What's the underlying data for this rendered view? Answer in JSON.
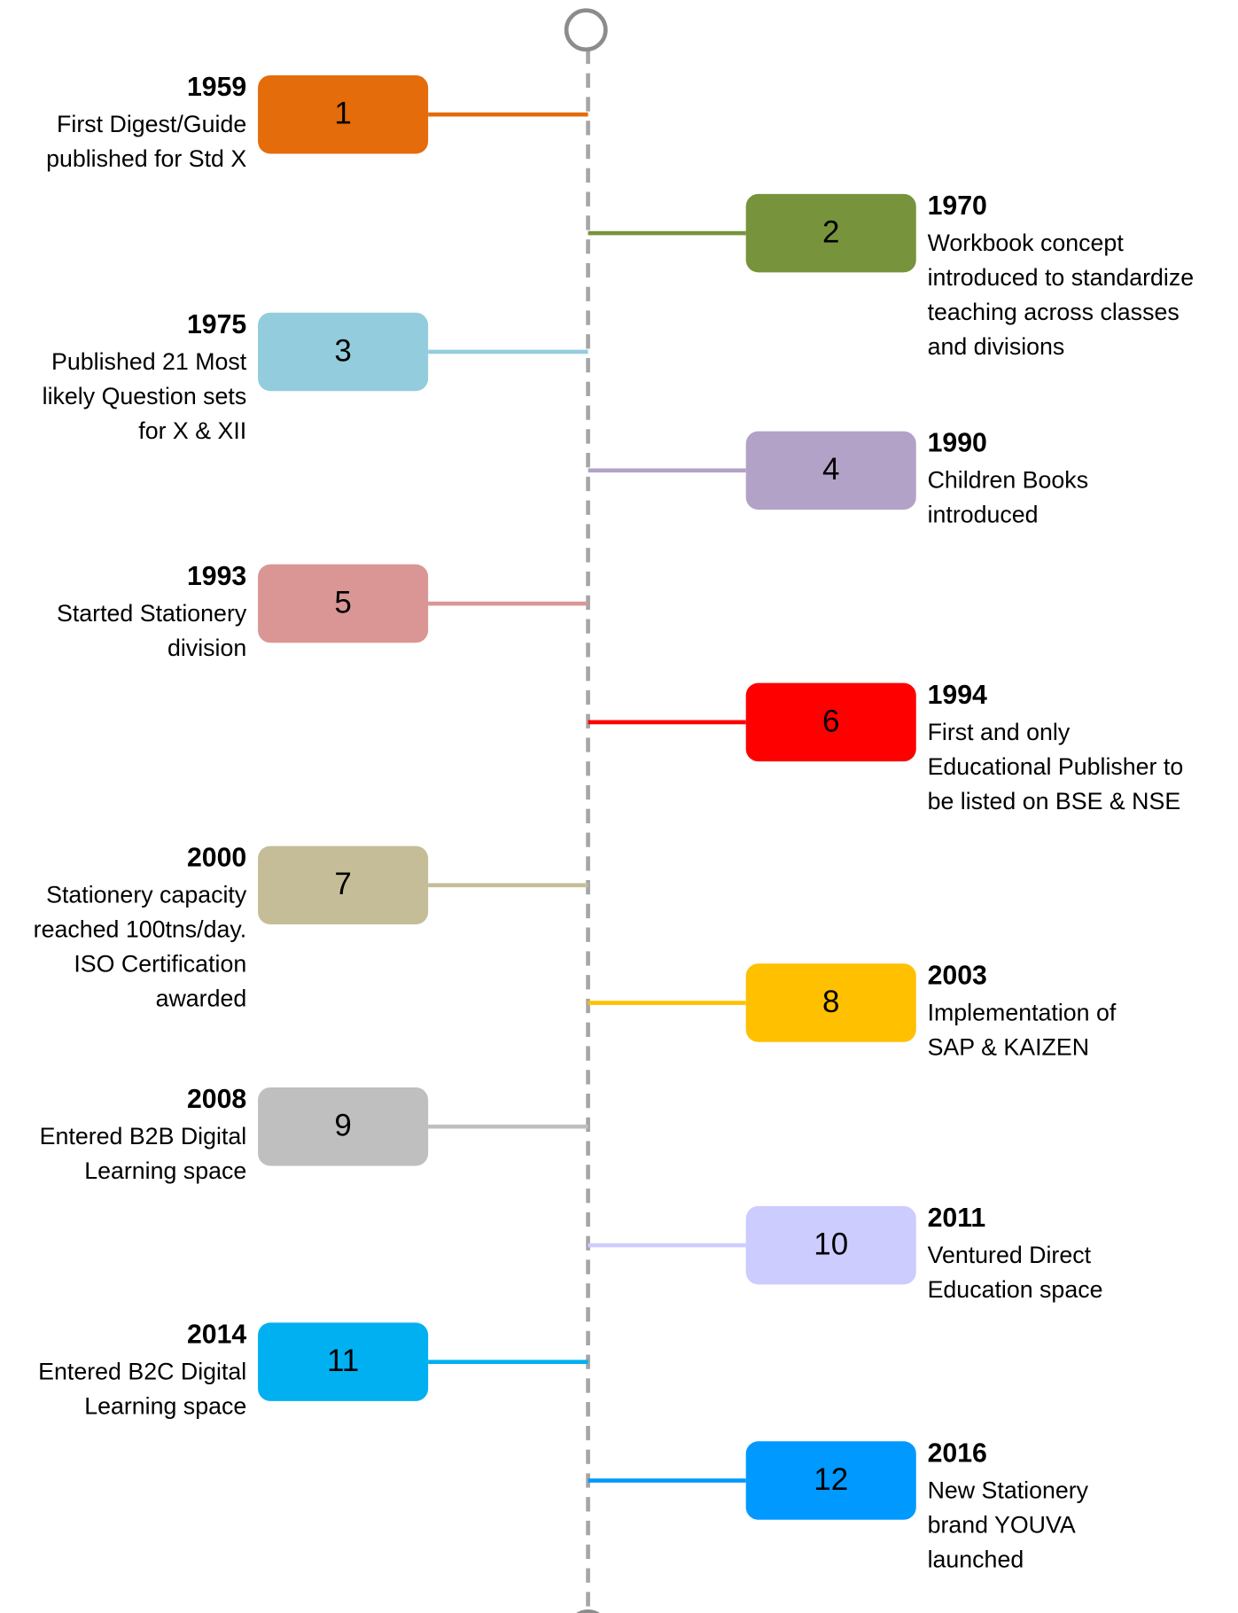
{
  "timeline": {
    "items": [
      {
        "number": "1",
        "year": "1959",
        "lines": [
          "First Digest/Guide",
          "published for Std X"
        ],
        "color": "#E46C0A"
      },
      {
        "number": "2",
        "year": "1970",
        "lines": [
          "Workbook concept",
          "introduced to standardize",
          "teaching across classes",
          "and divisions"
        ],
        "color": "#77933C"
      },
      {
        "number": "3",
        "year": "1975",
        "lines": [
          "Published 21 Most",
          "likely Question sets",
          "for X & XII"
        ],
        "color": "#93CDDD"
      },
      {
        "number": "4",
        "year": "1990",
        "lines": [
          "Children Books",
          "introduced"
        ],
        "color": "#B3A2C7"
      },
      {
        "number": "5",
        "year": "1993",
        "lines": [
          "Started Stationery",
          "division"
        ],
        "color": "#D99694"
      },
      {
        "number": "6",
        "year": "1994",
        "lines": [
          "First and only",
          "Educational Publisher to",
          "be listed on BSE & NSE"
        ],
        "color": "#FF0000"
      },
      {
        "number": "7",
        "year": "2000",
        "lines": [
          "Stationery capacity",
          "reached 100tns/day.",
          "ISO Certification",
          "awarded"
        ],
        "color": "#C4BD97"
      },
      {
        "number": "8",
        "year": "2003",
        "lines": [
          "Implementation of",
          "SAP & KAIZEN"
        ],
        "color": "#FFC000"
      },
      {
        "number": "9",
        "year": "2008",
        "lines": [
          "Entered B2B Digital",
          "Learning space"
        ],
        "color": "#BFBFBF"
      },
      {
        "number": "10",
        "year": "2011",
        "lines": [
          "Ventured Direct",
          "Education space"
        ],
        "color": "#CCCCFF"
      },
      {
        "number": "11",
        "year": "2014",
        "lines": [
          "Entered B2C Digital",
          "Learning space"
        ],
        "color": "#00B0F0"
      },
      {
        "number": "12",
        "year": "2016",
        "lines": [
          "New Stationery",
          "brand YOUVA",
          "launched"
        ],
        "color": "#0099FF"
      }
    ]
  }
}
